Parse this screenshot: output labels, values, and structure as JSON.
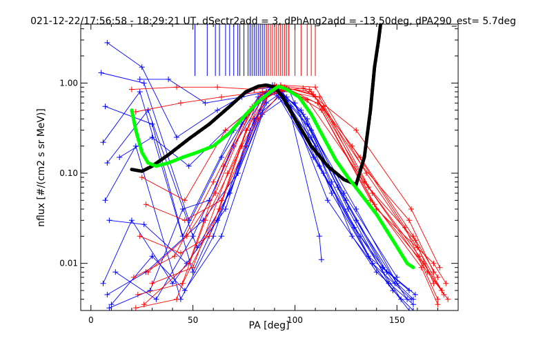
{
  "chart_data": {
    "type": "line",
    "title": "021-12-22/17:56:58 - 18:29:21 UT, dSectr2add = 3, dPhAng2add = -13.50deg, dPA290_est=   5.7deg",
    "xlabel": "PA [deg]",
    "ylabel": "nflux [#/(cm2 s sr MeV)]",
    "x_scale": "linear",
    "y_scale": "log",
    "xlim": [
      -5,
      180
    ],
    "ylim": [
      0.003,
      4.5
    ],
    "x_ticks": [
      {
        "value": 0,
        "label": "0"
      },
      {
        "value": 50,
        "label": "50"
      },
      {
        "value": 100,
        "label": "100"
      },
      {
        "value": 150,
        "label": "150"
      }
    ],
    "y_ticks": [
      {
        "value": 0.01,
        "label": "0.01"
      },
      {
        "value": 0.1,
        "label": "0.10"
      },
      {
        "value": 1,
        "label": "1.00"
      }
    ],
    "grid": false,
    "colors": {
      "blue": "#0000ff",
      "red": "#ff0000",
      "black": "#000000",
      "green": "#00ff00"
    },
    "vertical_markers": {
      "blue_x": [
        51,
        57,
        61,
        63,
        66,
        68,
        70,
        72,
        73,
        75,
        77,
        78,
        79,
        80,
        81,
        82,
        83,
        84,
        85,
        86,
        87
      ],
      "red_x": [
        86,
        87,
        88,
        89,
        90,
        91,
        92,
        93,
        94,
        95,
        96,
        97,
        100,
        103,
        106,
        108,
        110
      ],
      "y_bottom": 1.2
    },
    "series": [
      {
        "color": "blue",
        "x": [
          8,
          25,
          42,
          62,
          80,
          90,
          108,
          130,
          150,
          158
        ],
        "y": [
          2.8,
          1.5,
          0.25,
          0.5,
          0.85,
          0.9,
          0.3,
          0.04,
          0.006,
          0.004
        ]
      },
      {
        "color": "blue",
        "x": [
          5,
          26,
          48,
          70,
          84,
          92,
          110,
          128,
          148,
          158
        ],
        "y": [
          1.3,
          1.0,
          0.03,
          0.3,
          0.75,
          0.85,
          0.2,
          0.02,
          0.005,
          0.003
        ]
      },
      {
        "color": "blue",
        "x": [
          7,
          30,
          45,
          64,
          82,
          91,
          106,
          125,
          145
        ],
        "y": [
          0.55,
          0.35,
          0.02,
          0.15,
          0.7,
          0.92,
          0.4,
          0.05,
          0.008
        ]
      },
      {
        "color": "blue",
        "x": [
          6,
          24,
          50,
          72,
          86,
          94,
          112,
          132,
          152
        ],
        "y": [
          0.22,
          0.8,
          0.008,
          0.1,
          0.6,
          0.8,
          0.12,
          0.02,
          0.004
        ]
      },
      {
        "color": "blue",
        "x": [
          8,
          28,
          52,
          68,
          83,
          90,
          104,
          124,
          150
        ],
        "y": [
          0.13,
          0.5,
          0.015,
          0.06,
          0.5,
          0.95,
          0.45,
          0.06,
          0.007
        ]
      },
      {
        "color": "blue",
        "x": [
          7,
          22,
          44,
          60,
          78,
          88,
          108,
          130,
          155
        ],
        "y": [
          0.05,
          0.2,
          0.004,
          0.02,
          0.3,
          0.9,
          0.25,
          0.03,
          0.004
        ]
      },
      {
        "color": "blue",
        "x": [
          9,
          26,
          47,
          66,
          80,
          92,
          114,
          136,
          156
        ],
        "y": [
          0.03,
          0.027,
          0.01,
          0.04,
          0.4,
          0.7,
          0.1,
          0.012,
          0.005
        ]
      },
      {
        "color": "blue",
        "x": [
          6,
          20,
          40,
          62,
          76,
          86,
          100,
          118,
          138,
          156
        ],
        "y": [
          0.006,
          0.03,
          0.006,
          0.03,
          0.2,
          0.8,
          0.6,
          0.08,
          0.01,
          0.003
        ]
      },
      {
        "color": "blue",
        "x": [
          10,
          30,
          46,
          64,
          84,
          96,
          112,
          113
        ],
        "y": [
          0.0035,
          0.012,
          0.005,
          0.02,
          0.45,
          0.7,
          0.02,
          0.011
        ]
      },
      {
        "color": "blue",
        "x": [
          8,
          27,
          55,
          72,
          88,
          98,
          116,
          140,
          158
        ],
        "y": [
          0.0045,
          0.008,
          0.03,
          0.1,
          0.85,
          0.55,
          0.05,
          0.008,
          0.0035
        ]
      },
      {
        "color": "blue",
        "x": [
          12,
          32,
          50,
          70,
          86,
          93,
          109,
          129,
          149
        ],
        "y": [
          0.008,
          0.004,
          0.02,
          0.2,
          0.8,
          0.75,
          0.15,
          0.025,
          0.006
        ]
      },
      {
        "color": "blue",
        "x": [
          9,
          29,
          45,
          58,
          74,
          89,
          103,
          121,
          143,
          159
        ],
        "y": [
          0.0032,
          0.005,
          0.04,
          0.05,
          0.35,
          0.95,
          0.5,
          0.07,
          0.009,
          0.0045
        ]
      },
      {
        "color": "blue",
        "x": [
          24,
          38,
          56,
          74,
          86,
          97,
          118,
          138,
          157
        ],
        "y": [
          1.1,
          1.1,
          0.6,
          0.7,
          0.8,
          0.85,
          0.06,
          0.01,
          0.004
        ]
      },
      {
        "color": "blue",
        "x": [
          14,
          30,
          48,
          66,
          82,
          92,
          106,
          126,
          146
        ],
        "y": [
          0.15,
          0.25,
          0.12,
          0.3,
          0.6,
          0.85,
          0.35,
          0.04,
          0.006
        ]
      },
      {
        "color": "red",
        "x": [
          20,
          42,
          62,
          80,
          93,
          110,
          135,
          160,
          172
        ],
        "y": [
          0.85,
          0.9,
          0.9,
          0.85,
          0.95,
          0.9,
          0.1,
          0.015,
          0.005
        ]
      },
      {
        "color": "red",
        "x": [
          22,
          44,
          64,
          84,
          95,
          112,
          138,
          165,
          175
        ],
        "y": [
          0.48,
          0.6,
          0.7,
          0.8,
          0.9,
          0.7,
          0.06,
          0.008,
          0.004
        ]
      },
      {
        "color": "red",
        "x": [
          25,
          46,
          66,
          86,
          96,
          113,
          140,
          168,
          174
        ],
        "y": [
          0.09,
          0.05,
          0.3,
          0.7,
          0.85,
          0.5,
          0.04,
          0.01,
          0.006
        ]
      },
      {
        "color": "red",
        "x": [
          21,
          41,
          60,
          78,
          92,
          108,
          132,
          158,
          170
        ],
        "y": [
          0.007,
          0.012,
          0.08,
          0.5,
          0.9,
          0.8,
          0.15,
          0.02,
          0.007
        ]
      },
      {
        "color": "red",
        "x": [
          23,
          45,
          63,
          81,
          94,
          111,
          137,
          163,
          172
        ],
        "y": [
          0.0045,
          0.006,
          0.04,
          0.6,
          0.85,
          0.6,
          0.05,
          0.01,
          0.005
        ]
      },
      {
        "color": "red",
        "x": [
          26,
          48,
          65,
          83,
          93,
          109,
          133,
          156,
          168
        ],
        "y": [
          0.0035,
          0.01,
          0.12,
          0.75,
          0.92,
          0.75,
          0.12,
          0.03,
          0.008
        ]
      },
      {
        "color": "red",
        "x": [
          24,
          44,
          58,
          76,
          90,
          107,
          128,
          154,
          170
        ],
        "y": [
          0.02,
          0.013,
          0.02,
          0.3,
          0.95,
          0.85,
          0.2,
          0.025,
          0.004
        ]
      },
      {
        "color": "red",
        "x": [
          28,
          47,
          61,
          79,
          91,
          106,
          134,
          161,
          173
        ],
        "y": [
          0.008,
          0.02,
          0.06,
          0.55,
          0.92,
          0.65,
          0.08,
          0.012,
          0.0045
        ]
      },
      {
        "color": "red",
        "x": [
          22,
          42,
          56,
          74,
          88,
          104,
          130,
          157,
          171
        ],
        "y": [
          0.0032,
          0.004,
          0.03,
          0.2,
          0.8,
          0.88,
          0.3,
          0.04,
          0.009
        ]
      },
      {
        "color": "red",
        "x": [
          30,
          50,
          67,
          84,
          96,
          114,
          139,
          162,
          170
        ],
        "y": [
          0.006,
          0.009,
          0.1,
          0.7,
          0.88,
          0.55,
          0.045,
          0.009,
          0.0035
        ]
      },
      {
        "color": "red",
        "x": [
          27,
          46,
          64,
          82,
          94,
          110,
          136,
          159,
          168
        ],
        "y": [
          0.045,
          0.03,
          0.05,
          0.4,
          0.82,
          0.7,
          0.07,
          0.018,
          0.006
        ]
      },
      {
        "color": "black",
        "x": [
          20,
          25,
          30,
          38,
          48,
          58,
          68,
          76,
          82,
          86,
          90,
          94,
          100,
          108,
          116,
          124,
          130,
          134,
          137,
          139,
          141,
          142
        ],
        "y": [
          0.11,
          0.105,
          0.12,
          0.16,
          0.24,
          0.35,
          0.55,
          0.8,
          0.92,
          0.95,
          0.9,
          0.7,
          0.4,
          0.2,
          0.12,
          0.085,
          0.075,
          0.15,
          0.5,
          1.5,
          3.0,
          4.5
        ]
      },
      {
        "color": "green",
        "x": [
          20,
          22,
          25,
          28,
          32,
          38,
          45,
          52,
          60,
          68,
          76,
          82,
          88,
          92,
          96,
          102,
          108,
          114,
          120,
          126,
          132,
          140,
          148,
          155,
          158
        ],
        "y": [
          0.5,
          0.3,
          0.17,
          0.13,
          0.12,
          0.13,
          0.15,
          0.17,
          0.2,
          0.28,
          0.45,
          0.62,
          0.8,
          0.92,
          0.85,
          0.7,
          0.45,
          0.25,
          0.14,
          0.09,
          0.06,
          0.035,
          0.018,
          0.01,
          0.009
        ]
      }
    ]
  }
}
